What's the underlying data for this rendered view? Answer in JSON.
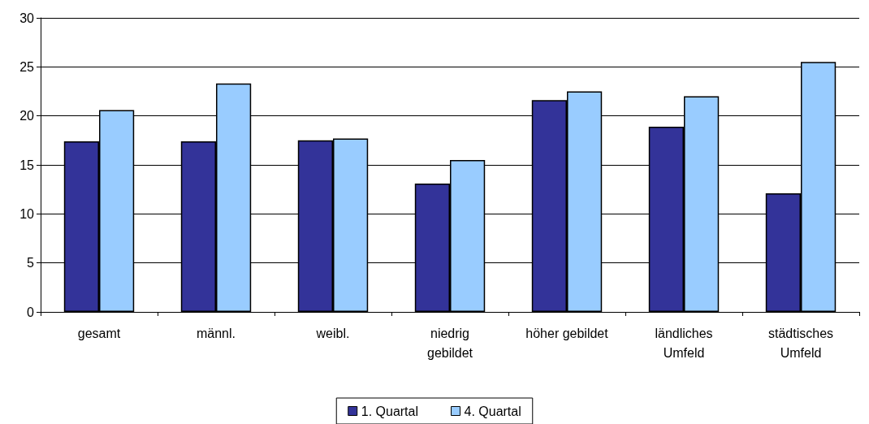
{
  "chart_data": {
    "type": "bar",
    "categories": [
      "gesamt",
      "männl.",
      "weibl.",
      "niedrig\ngebildet",
      "höher gebildet",
      "ländliches\nUmfeld",
      "städtisches\nUmfeld"
    ],
    "series": [
      {
        "name": "1. Quartal",
        "color": "#333399",
        "values": [
          17.4,
          17.4,
          17.5,
          13.1,
          21.6,
          18.9,
          12.1
        ]
      },
      {
        "name": "4. Quartal",
        "color": "#99ccff",
        "values": [
          20.6,
          23.3,
          17.7,
          15.5,
          22.5,
          22.0,
          25.5
        ]
      }
    ],
    "ylim": [
      0,
      30
    ],
    "yticks": [
      0,
      5,
      10,
      15,
      20,
      25,
      30
    ],
    "grid": "y",
    "legend": "bottom"
  }
}
